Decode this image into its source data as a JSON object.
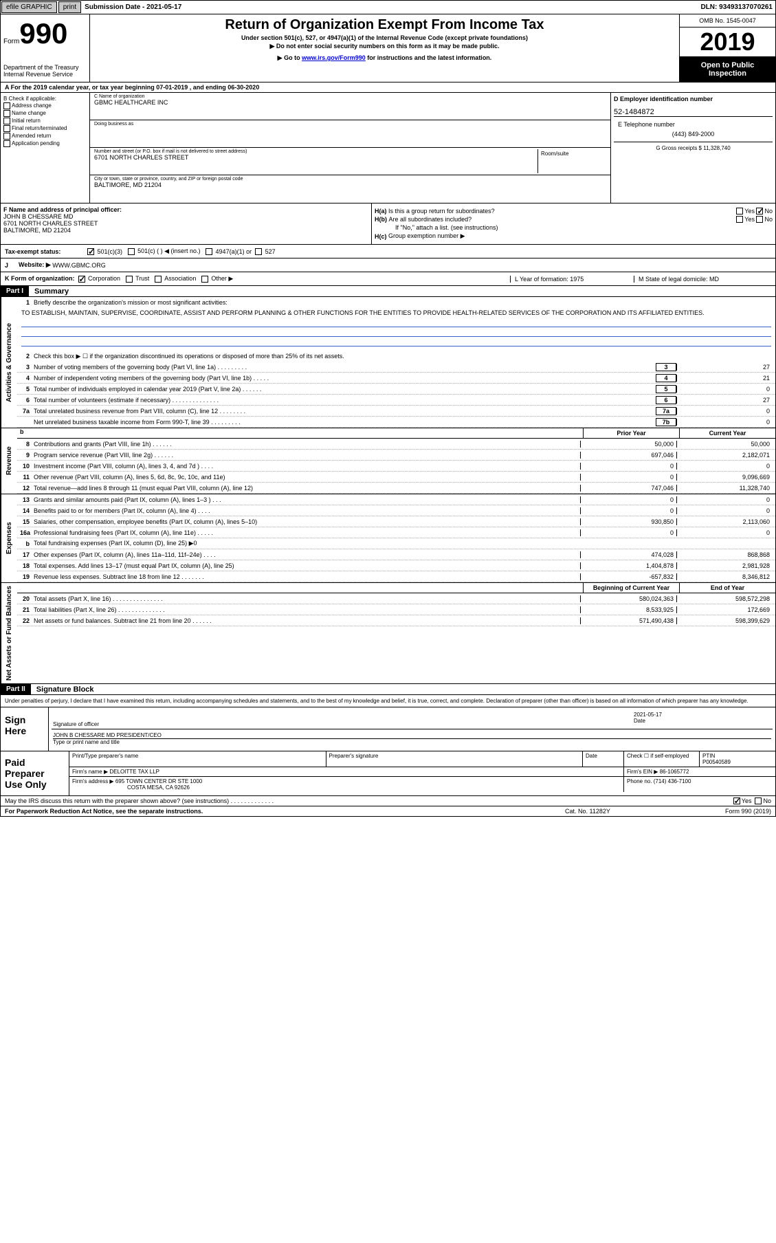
{
  "topbar": {
    "efile": "efile GRAPHIC",
    "print": "print",
    "sub_label": "Submission Date - 2021-05-17",
    "dln": "DLN: 93493137070261"
  },
  "header": {
    "form_word": "Form",
    "form_num": "990",
    "dept": "Department of the Treasury\nInternal Revenue Service",
    "title": "Return of Organization Exempt From Income Tax",
    "sub1": "Under section 501(c), 527, or 4947(a)(1) of the Internal Revenue Code (except private foundations)",
    "sub2": "▶ Do not enter social security numbers on this form as it may be made public.",
    "sub3_pre": "▶ Go to ",
    "sub3_link": "www.irs.gov/Form990",
    "sub3_post": " for instructions and the latest information.",
    "omb": "OMB No. 1545-0047",
    "year": "2019",
    "inspection": "Open to Public Inspection"
  },
  "period": {
    "text": "A   For the 2019 calendar year, or tax year beginning 07-01-2019    , and ending 06-30-2020"
  },
  "section_b": {
    "label": "B Check if applicable:",
    "items": [
      "Address change",
      "Name change",
      "Initial return",
      "Final return/terminated",
      "Amended return",
      "Application pending"
    ]
  },
  "section_c": {
    "name_label": "C Name of organization",
    "name": "GBMC HEALTHCARE INC",
    "dba_label": "Doing business as",
    "dba": "",
    "addr_label": "Number and street (or P.O. box if mail is not delivered to street address)",
    "addr": "6701 NORTH CHARLES STREET",
    "suite_label": "Room/suite",
    "city_label": "City or town, state or province, country, and ZIP or foreign postal code",
    "city": "BALTIMORE, MD  21204"
  },
  "section_d": {
    "label": "D Employer identification number",
    "ein": "52-1484872"
  },
  "section_e": {
    "label": "E Telephone number",
    "tel": "(443) 849-2000"
  },
  "section_g": {
    "label": "G Gross receipts $ 11,328,740"
  },
  "section_f": {
    "label": "F  Name and address of principal officer:",
    "name": "JOHN B CHESSARE MD",
    "addr1": "6701 NORTH CHARLES STREET",
    "addr2": "BALTIMORE, MD  21204"
  },
  "section_h": {
    "ha_label": "H(a)",
    "ha_text": "Is this a group return for subordinates?",
    "hb_label": "H(b)",
    "hb_text": "Are all subordinates included?",
    "hb_note": "If \"No,\" attach a list. (see instructions)",
    "hc_label": "H(c)",
    "hc_text": "Group exemption number ▶",
    "yes": "Yes",
    "no": "No"
  },
  "tax_status": {
    "label": "Tax-exempt status:",
    "opt1": "501(c)(3)",
    "opt2": "501(c) (   ) ◀ (insert no.)",
    "opt3": "4947(a)(1) or",
    "opt4": "527"
  },
  "website": {
    "label_j": "J",
    "label": "Website: ▶",
    "val": "WWW.GBMC.ORG"
  },
  "kform": {
    "label": "K Form of organization:",
    "opts": [
      "Corporation",
      "Trust",
      "Association",
      "Other ▶"
    ],
    "l_label": "L Year of formation: 1975",
    "m_label": "M State of legal domicile: MD"
  },
  "part1": {
    "header": "Part I",
    "title": "Summary"
  },
  "summary": {
    "vert_gov": "Activities & Governance",
    "vert_rev": "Revenue",
    "vert_exp": "Expenses",
    "vert_net": "Net Assets or Fund Balances",
    "line1_label": "Briefly describe the organization's mission or most significant activities:",
    "line1_text": "TO ESTABLISH, MAINTAIN, SUPERVISE, COORDINATE, ASSIST AND PERFORM PLANNING & OTHER FUNCTIONS FOR THE ENTITIES TO PROVIDE HEALTH-RELATED SERVICES OF THE CORPORATION AND ITS AFFILIATED ENTITIES.",
    "line2": "Check this box ▶ ☐  if the organization discontinued its operations or disposed of more than 25% of its net assets.",
    "lines_gov": [
      {
        "n": "3",
        "t": "Number of voting members of the governing body (Part VI, line 1a)  .  .  .  .  .  .  .  .  .",
        "box": "3",
        "v": "27"
      },
      {
        "n": "4",
        "t": "Number of independent voting members of the governing body (Part VI, line 1b)  .  .  .  .  .",
        "box": "4",
        "v": "21"
      },
      {
        "n": "5",
        "t": "Total number of individuals employed in calendar year 2019 (Part V, line 2a)  .  .  .  .  .  .",
        "box": "5",
        "v": "0"
      },
      {
        "n": "6",
        "t": "Total number of volunteers (estimate if necessary)  .  .  .  .  .  .  .  .  .  .  .  .  .  .",
        "box": "6",
        "v": "27"
      },
      {
        "n": "7a",
        "t": "Total unrelated business revenue from Part VIII, column (C), line 12  .  .  .  .  .  .  .  .",
        "box": "7a",
        "v": "0"
      },
      {
        "n": "",
        "t": "Net unrelated business taxable income from Form 990-T, line 39  .  .  .  .  .  .  .  .  .",
        "box": "7b",
        "v": "0"
      }
    ],
    "col_prior": "Prior Year",
    "col_current": "Current Year",
    "lines_rev": [
      {
        "n": "8",
        "t": "Contributions and grants (Part VIII, line 1h)  .  .  .  .  .  .",
        "p": "50,000",
        "c": "50,000"
      },
      {
        "n": "9",
        "t": "Program service revenue (Part VIII, line 2g)  .  .  .  .  .  .",
        "p": "697,046",
        "c": "2,182,071"
      },
      {
        "n": "10",
        "t": "Investment income (Part VIII, column (A), lines 3, 4, and 7d )  .  .  .  .",
        "p": "0",
        "c": "0"
      },
      {
        "n": "11",
        "t": "Other revenue (Part VIII, column (A), lines 5, 6d, 8c, 9c, 10c, and 11e)",
        "p": "0",
        "c": "9,096,669"
      },
      {
        "n": "12",
        "t": "Total revenue—add lines 8 through 11 (must equal Part VIII, column (A), line 12)",
        "p": "747,046",
        "c": "11,328,740"
      }
    ],
    "lines_exp": [
      {
        "n": "13",
        "t": "Grants and similar amounts paid (Part IX, column (A), lines 1–3 )  .  .  .",
        "p": "0",
        "c": "0"
      },
      {
        "n": "14",
        "t": "Benefits paid to or for members (Part IX, column (A), line 4)  .  .  .  .",
        "p": "0",
        "c": "0"
      },
      {
        "n": "15",
        "t": "Salaries, other compensation, employee benefits (Part IX, column (A), lines 5–10)",
        "p": "930,850",
        "c": "2,113,060"
      },
      {
        "n": "16a",
        "t": "Professional fundraising fees (Part IX, column (A), line 11e)  .  .  .  .  .",
        "p": "0",
        "c": "0"
      },
      {
        "n": "b",
        "t": "Total fundraising expenses (Part IX, column (D), line 25) ▶0",
        "p": "",
        "c": "",
        "gray": true
      },
      {
        "n": "17",
        "t": "Other expenses (Part IX, column (A), lines 11a–11d, 11f–24e)  .  .  .  .",
        "p": "474,028",
        "c": "868,868"
      },
      {
        "n": "18",
        "t": "Total expenses. Add lines 13–17 (must equal Part IX, column (A), line 25)",
        "p": "1,404,878",
        "c": "2,981,928"
      },
      {
        "n": "19",
        "t": "Revenue less expenses. Subtract line 18 from line 12 .  .  .  .  .  .  .",
        "p": "-657,832",
        "c": "8,346,812"
      }
    ],
    "col_begin": "Beginning of Current Year",
    "col_end": "End of Year",
    "lines_net": [
      {
        "n": "20",
        "t": "Total assets (Part X, line 16) .  .  .  .  .  .  .  .  .  .  .  .  .  .  .",
        "p": "580,024,363",
        "c": "598,572,298"
      },
      {
        "n": "21",
        "t": "Total liabilities (Part X, line 26) .  .  .  .  .  .  .  .  .  .  .  .  .  .",
        "p": "8,533,925",
        "c": "172,669"
      },
      {
        "n": "22",
        "t": "Net assets or fund balances. Subtract line 21 from line 20  .  .  .  .  .  .",
        "p": "571,490,438",
        "c": "598,399,629"
      }
    ]
  },
  "part2": {
    "header": "Part II",
    "title": "Signature Block",
    "intro": "Under penalties of perjury, I declare that I have examined this return, including accompanying schedules and statements, and to the best of my knowledge and belief, it is true, correct, and complete. Declaration of preparer (other than officer) is based on all information of which preparer has any knowledge.",
    "sign_here": "Sign Here",
    "sig_officer": "Signature of officer",
    "sig_date": "2021-05-17",
    "date_label": "Date",
    "name_title": "JOHN B CHESSARE MD  PRESIDENT/CEO",
    "name_title_label": "Type or print name and title",
    "paid_prep": "Paid Preparer Use Only",
    "prep_name_label": "Print/Type preparer's name",
    "prep_sig_label": "Preparer's signature",
    "prep_date_label": "Date",
    "prep_check": "Check ☐ if self-employed",
    "ptin_label": "PTIN",
    "ptin": "P00540589",
    "firm_name_label": "Firm's name    ▶",
    "firm_name": "DELOITTE TAX LLP",
    "firm_ein_label": "Firm's EIN ▶",
    "firm_ein": "86-1065772",
    "firm_addr_label": "Firm's address ▶",
    "firm_addr1": "695 TOWN CENTER DR STE 1000",
    "firm_addr2": "COSTA MESA, CA  92626",
    "phone_label": "Phone no.",
    "phone": "(714) 436-7100",
    "discuss": "May the IRS discuss this return with the preparer shown above? (see instructions)  .  .  .  .  .  .  .  .  .  .  .  .  .",
    "yes": "Yes",
    "no": "No"
  },
  "footer": {
    "left": "For Paperwork Reduction Act Notice, see the separate instructions.",
    "mid": "Cat. No. 11282Y",
    "right": "Form 990 (2019)"
  }
}
